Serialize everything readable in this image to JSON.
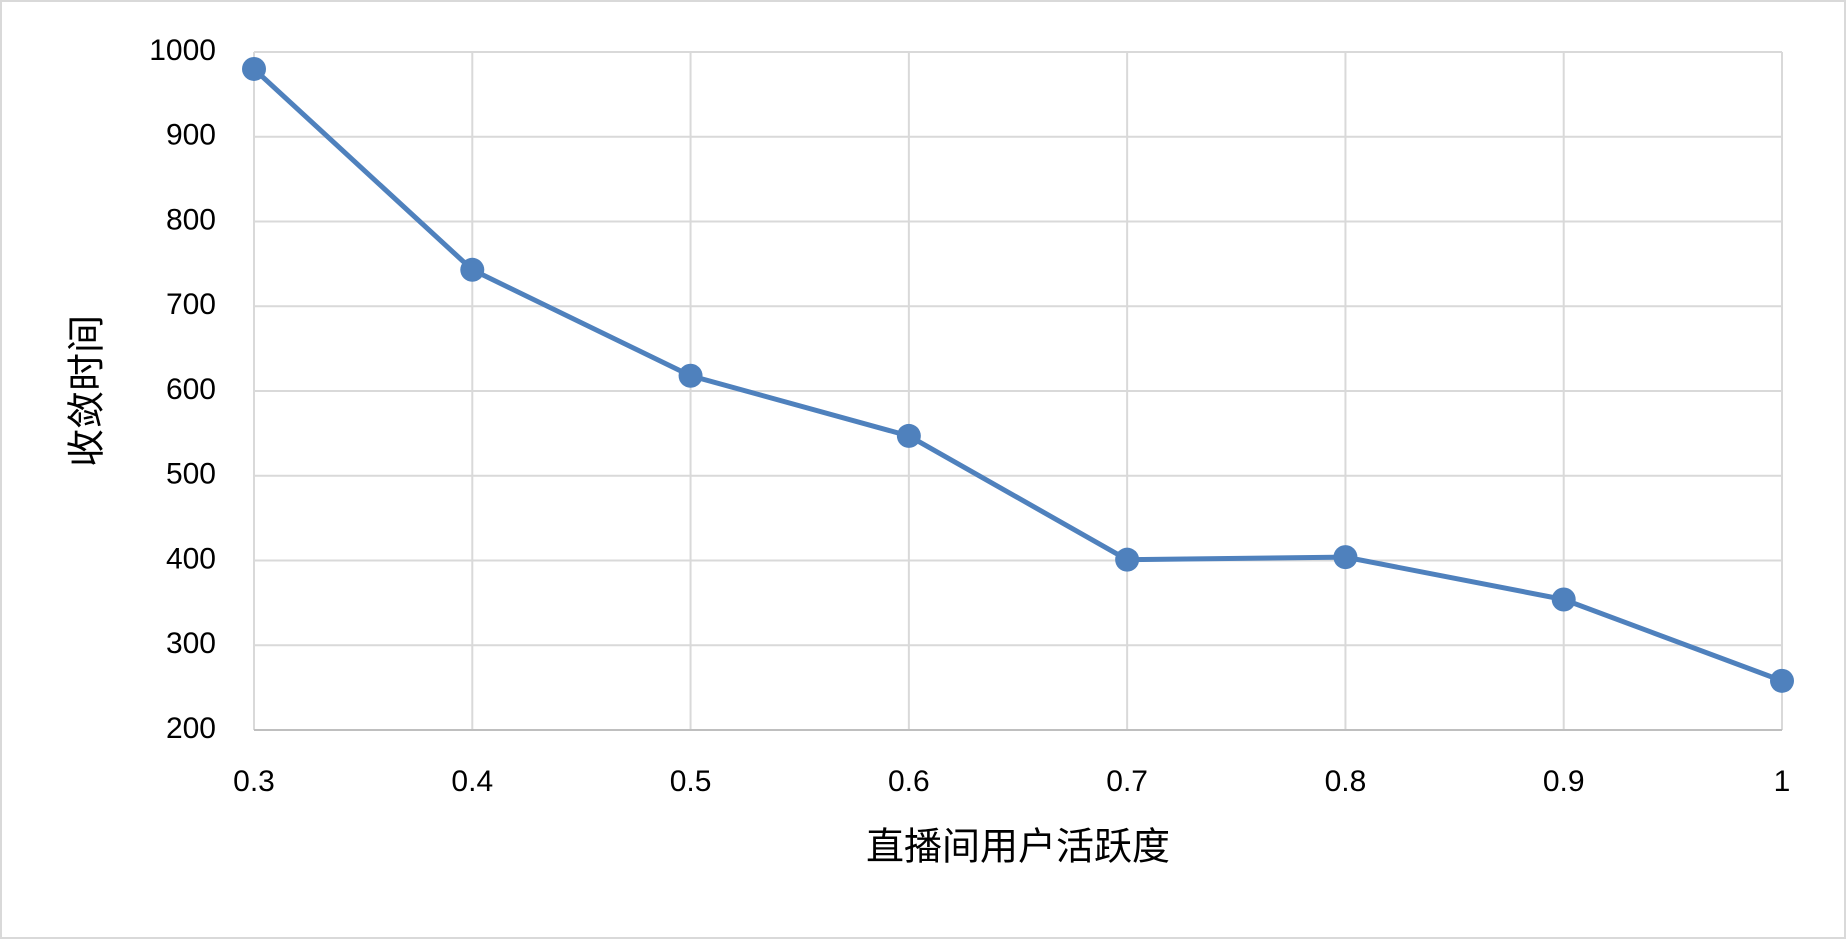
{
  "chart_data": {
    "type": "line",
    "x_label": "直播间用户活跃度",
    "y_label": "收敛时间",
    "x": [
      0.3,
      0.4,
      0.5,
      0.6,
      0.7,
      0.8,
      0.9,
      1
    ],
    "series": [
      {
        "name": "收敛时间",
        "color": "#4f81bd",
        "values": [
          980,
          743,
          618,
          547,
          401,
          404,
          354,
          258
        ]
      }
    ],
    "xlim": [
      0.3,
      1
    ],
    "xticks": [
      0.3,
      0.4,
      0.5,
      0.6,
      0.7,
      0.8,
      0.9,
      1
    ],
    "ylim": [
      200,
      1000
    ],
    "yticks": [
      200,
      300,
      400,
      500,
      600,
      700,
      800,
      900,
      1000
    ],
    "grid": true,
    "legend": false
  }
}
